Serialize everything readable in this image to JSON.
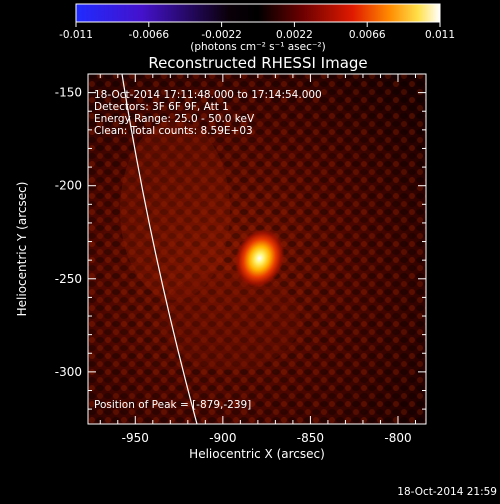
{
  "colorbar": {
    "tick_labels": [
      "-0.011",
      "-0.0066",
      "-0.0022",
      "0.0022",
      "0.0066",
      "0.011"
    ],
    "unit_label": "(photons cm⁻² s⁻¹ asec⁻²)",
    "ticks_value": [
      -0.011,
      -0.0066,
      -0.0022,
      0.0022,
      0.0066,
      0.011
    ],
    "colormap": [
      "#1e2cff",
      "#3300aa",
      "#000000",
      "#7a0000",
      "#ff2000",
      "#ff9a00",
      "#fff46a",
      "#ffffff"
    ]
  },
  "plot": {
    "title": "Reconstructed RHESSI Image",
    "xlabel": "Heliocentric X (arcsec)",
    "ylabel": "Heliocentric Y (arcsec)",
    "x_ticks": [
      "-950",
      "-900",
      "-850",
      "-800"
    ],
    "y_ticks": [
      "-150",
      "-200",
      "-250",
      "-300"
    ],
    "x_tick_values": [
      -950,
      -900,
      -850,
      -800
    ],
    "y_tick_values": [
      -150,
      -200,
      -250,
      -300
    ],
    "xlim": [
      -977,
      -784
    ],
    "ylim": [
      -328,
      -140
    ],
    "info": {
      "time_range": "18-Oct-2014 17:11:48.000 to 17:14:54.000",
      "detectors": "Detectors: 3F 6F 9F, Att 1",
      "energy": "Energy Range: 25.0 - 50.0 keV",
      "clean": "Clean:   Total counts: 8.59E+03"
    },
    "peak_text": "Position of Peak = [-879,-239]",
    "peak": [
      -879,
      -239
    ],
    "limb_color": "#ffffff"
  },
  "footer": {
    "timestamp": "18-Oct-2014 21:59"
  }
}
